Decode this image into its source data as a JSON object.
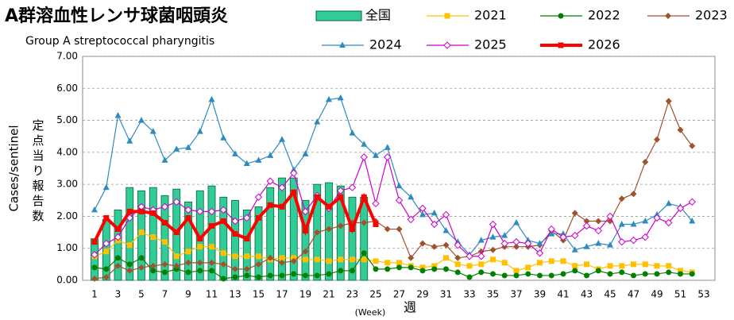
{
  "chart_data": {
    "type": "line",
    "title": "A群溶血性レンサ球菌咽頭炎",
    "subtitle": "Group A streptococcal pharyngitis",
    "ylabel": "Cases/sentinel",
    "ylabel_ja": "定点当り報告数",
    "xlabel": "(Week)",
    "xlabel_ja": "週",
    "categories": [
      1,
      null,
      3,
      null,
      5,
      null,
      7,
      null,
      9,
      null,
      11,
      null,
      13,
      null,
      15,
      null,
      17,
      null,
      19,
      null,
      21,
      null,
      23,
      null,
      25,
      null,
      27,
      null,
      29,
      null,
      31,
      null,
      33,
      null,
      35,
      null,
      37,
      null,
      39,
      null,
      41,
      null,
      43,
      null,
      45,
      null,
      47,
      null,
      49,
      null,
      51,
      null,
      53
    ],
    "ylim": [
      0,
      7
    ],
    "yticks": [
      {
        "value": 0,
        "label": "0.00"
      },
      {
        "value": 1,
        "label": "1.00"
      },
      {
        "value": 2,
        "label": "2.00"
      },
      {
        "value": 3,
        "label": "3.00"
      },
      {
        "value": 4,
        "label": "4.00"
      },
      {
        "value": 5,
        "label": "5.00"
      },
      {
        "value": 6,
        "label": "6.00"
      },
      {
        "value": 7,
        "label": "7.00"
      }
    ],
    "grid": true,
    "series": [
      {
        "name": "全国",
        "type": "bar",
        "color": "#33cc99",
        "values": [
          1.3,
          1.9,
          2.2,
          2.9,
          2.8,
          2.9,
          2.65,
          2.85,
          2.45,
          2.8,
          2.95,
          2.6,
          2.5,
          2.2,
          2.3,
          2.9,
          3.2,
          3.2,
          2.5,
          3.0,
          3.05,
          2.95,
          2.6,
          2.6,
          null,
          null,
          null,
          null,
          null,
          null,
          null,
          null,
          null,
          null,
          null,
          null,
          null,
          null,
          null,
          null,
          null,
          null,
          null,
          null,
          null,
          null,
          null,
          null,
          null,
          null,
          null,
          null,
          null
        ]
      },
      {
        "name": "2021",
        "color": "#ffc000",
        "marker": "square",
        "values": [
          0.75,
          0.9,
          1.25,
          1.1,
          1.5,
          1.35,
          1.2,
          0.75,
          0.9,
          1.05,
          1.05,
          0.85,
          0.75,
          0.75,
          0.75,
          0.65,
          0.7,
          0.7,
          0.65,
          0.65,
          0.6,
          0.65,
          0.65,
          0.65,
          0.6,
          0.55,
          0.55,
          0.45,
          0.4,
          0.45,
          0.7,
          0.5,
          0.45,
          0.5,
          0.65,
          0.55,
          0.3,
          0.4,
          0.55,
          0.6,
          0.6,
          0.45,
          0.5,
          0.35,
          0.45,
          0.45,
          0.5,
          0.5,
          0.45,
          0.45,
          0.3,
          0.25,
          null
        ]
      },
      {
        "name": "2022",
        "color": "#008000",
        "marker": "circle",
        "values": [
          0.4,
          0.35,
          0.7,
          0.5,
          0.7,
          0.3,
          0.25,
          0.35,
          0.25,
          0.3,
          0.3,
          0.05,
          0.1,
          0.15,
          0.1,
          0.15,
          0.15,
          0.2,
          0.15,
          0.15,
          0.2,
          0.3,
          0.3,
          0.85,
          0.35,
          0.35,
          0.4,
          0.4,
          0.3,
          0.35,
          0.35,
          0.25,
          0.1,
          0.25,
          0.2,
          0.15,
          0.15,
          0.2,
          0.15,
          0.15,
          0.2,
          0.3,
          0.15,
          0.3,
          0.2,
          0.25,
          0.15,
          0.2,
          0.2,
          0.25,
          0.2,
          0.2,
          null
        ]
      },
      {
        "name": "2023",
        "color": "#a0522d",
        "marker": "diamond",
        "values": [
          0.05,
          0.1,
          0.45,
          0.3,
          0.4,
          0.45,
          0.5,
          0.45,
          0.55,
          0.55,
          0.55,
          0.5,
          0.35,
          0.35,
          0.5,
          0.7,
          0.55,
          0.6,
          0.9,
          1.5,
          1.6,
          1.7,
          1.8,
          1.8,
          1.85,
          1.6,
          1.6,
          0.7,
          1.15,
          1.05,
          1.1,
          0.7,
          0.75,
          0.9,
          0.95,
          1.05,
          1.05,
          1.05,
          1.1,
          1.55,
          1.25,
          2.1,
          1.85,
          1.85,
          1.85,
          2.55,
          2.7,
          3.7,
          4.4,
          5.6,
          4.7,
          4.2,
          null
        ]
      },
      {
        "name": "2024",
        "color": "#2e8bc0",
        "marker": "triangle",
        "values": [
          2.2,
          2.9,
          5.15,
          4.35,
          5.0,
          4.65,
          3.75,
          4.1,
          4.15,
          4.65,
          5.65,
          4.45,
          3.95,
          3.65,
          3.75,
          3.9,
          4.4,
          3.45,
          3.95,
          4.95,
          5.65,
          5.7,
          4.6,
          4.25,
          3.9,
          4.15,
          2.95,
          2.6,
          2.05,
          2.1,
          1.55,
          1.2,
          0.8,
          1.25,
          1.35,
          1.4,
          1.8,
          1.25,
          1.15,
          1.45,
          1.45,
          0.95,
          1.05,
          1.15,
          1.1,
          1.75,
          1.75,
          1.85,
          2.05,
          2.4,
          2.3,
          1.85,
          null
        ]
      },
      {
        "name": "2025",
        "color": "#cc00cc",
        "marker": "open-diamond",
        "values": [
          0.8,
          1.15,
          1.35,
          1.95,
          2.3,
          2.2,
          2.3,
          2.45,
          2.2,
          2.15,
          2.15,
          2.2,
          1.85,
          1.95,
          2.6,
          3.1,
          2.9,
          3.35,
          2.15,
          2.65,
          2.25,
          2.8,
          2.9,
          3.85,
          2.4,
          3.85,
          2.5,
          1.9,
          2.25,
          1.75,
          2.05,
          1.1,
          0.75,
          0.75,
          1.75,
          1.15,
          1.2,
          1.15,
          0.85,
          1.6,
          1.35,
          1.4,
          1.7,
          1.55,
          2.0,
          1.2,
          1.25,
          1.35,
          1.95,
          1.8,
          2.25,
          2.45,
          null
        ]
      },
      {
        "name": "2026",
        "color": "#ff0000",
        "marker": "square",
        "width": 4,
        "values": [
          1.2,
          1.95,
          1.6,
          2.15,
          2.15,
          2.1,
          1.8,
          1.5,
          1.95,
          1.3,
          1.7,
          1.85,
          1.45,
          1.3,
          1.95,
          2.35,
          2.3,
          2.75,
          1.55,
          2.6,
          2.3,
          2.6,
          1.6,
          2.6,
          1.75,
          null,
          null,
          null,
          null,
          null,
          null,
          null,
          null,
          null,
          null,
          null,
          null,
          null,
          null,
          null,
          null,
          null,
          null,
          null,
          null,
          null,
          null,
          null,
          null,
          null,
          null,
          null,
          null
        ]
      }
    ]
  }
}
